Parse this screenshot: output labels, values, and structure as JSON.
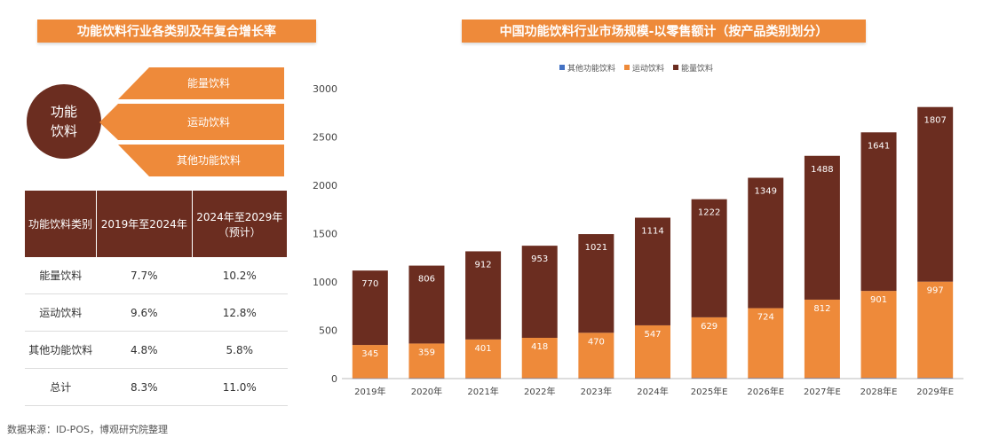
{
  "left": {
    "title": "功能饮料行业各类别及年复合增长率",
    "center": [
      "功能",
      "饮料"
    ],
    "branches": [
      "能量饮料",
      "运动饮料",
      "其他功能饮料"
    ],
    "table": {
      "headers": [
        "功能饮料类别",
        "2019年至2024年",
        "2024年至2029年",
        "（预计）"
      ],
      "rows": [
        [
          "能量饮料",
          "7.7%",
          "10.2%"
        ],
        [
          "运动饮料",
          "9.6%",
          "12.8%"
        ],
        [
          "其他功能饮料",
          "4.8%",
          "5.8%"
        ],
        [
          "总计",
          "8.3%",
          "11.0%"
        ]
      ]
    },
    "colors": {
      "orange": "#ee8a3a",
      "brown": "#6b2d20"
    }
  },
  "chart_data": {
    "type": "bar",
    "stacked": true,
    "title": "中国功能饮料行业市场规模-以零售额计（按产品类别划分）",
    "categories": [
      "2019年",
      "2020年",
      "2021年",
      "2022年",
      "2023年",
      "2024年",
      "2025年E",
      "2026年E",
      "2027年E",
      "2028年E",
      "2029年E"
    ],
    "series": [
      {
        "name": "其他功能饮料",
        "color": "#4472c4",
        "values": [
          3,
          4,
          4,
          4,
          4,
          4,
          5,
          5,
          5,
          6,
          6
        ]
      },
      {
        "name": "运动饮料",
        "color": "#ee8a3a",
        "values": [
          345,
          359,
          401,
          418,
          470,
          547,
          629,
          724,
          812,
          901,
          997
        ]
      },
      {
        "name": "能量饮料",
        "color": "#6b2d20",
        "values": [
          770,
          806,
          912,
          953,
          1021,
          1114,
          1222,
          1349,
          1488,
          1641,
          1807
        ]
      }
    ],
    "ylim": [
      0,
      3000
    ],
    "yticks": [
      0,
      500,
      1000,
      1500,
      2000,
      2500,
      3000
    ],
    "legend": "top",
    "grid": false
  },
  "footer": "数据来源：ID-POS，博观研究院整理"
}
